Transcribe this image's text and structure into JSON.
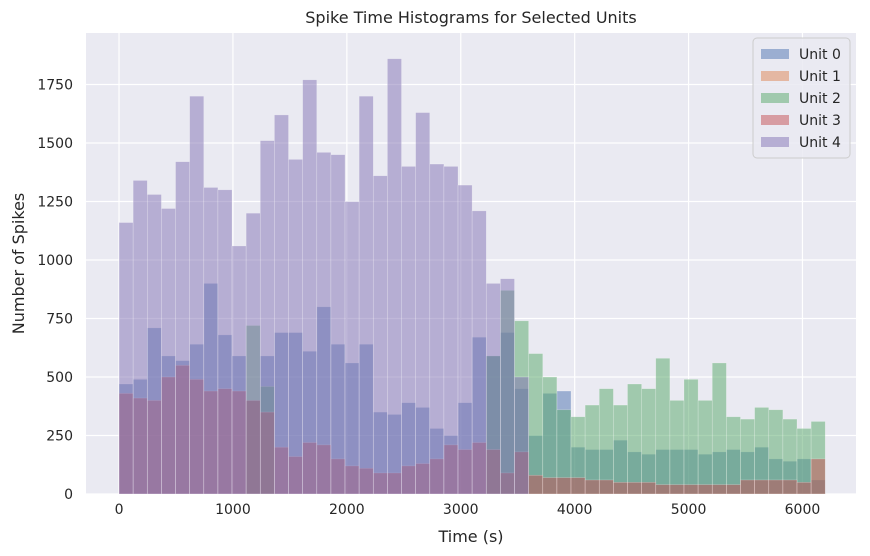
{
  "chart_data": {
    "type": "bar",
    "title": "Spike Time Histograms for Selected Units",
    "xlabel": "Time (s)",
    "ylabel": "Number of Spikes",
    "xlim": [
      -290,
      6470
    ],
    "ylim": [
      0,
      1970
    ],
    "x_ticks": [
      0,
      1000,
      2000,
      3000,
      4000,
      5000,
      6000
    ],
    "y_ticks": [
      0,
      250,
      500,
      750,
      1000,
      1250,
      1500,
      1750
    ],
    "grid": true,
    "legend_position": "top-right",
    "bin_start": 0,
    "bin_width": 124,
    "series": [
      {
        "name": "Unit 0",
        "color": "#4c72b0",
        "values": [
          470,
          490,
          710,
          590,
          570,
          640,
          900,
          680,
          590,
          400,
          590,
          690,
          690,
          610,
          800,
          640,
          560,
          640,
          350,
          340,
          390,
          370,
          280,
          250,
          390,
          670,
          590,
          690,
          450,
          250,
          430,
          440,
          200,
          190,
          190,
          230,
          180,
          170,
          190,
          190,
          190,
          170,
          180,
          190,
          180,
          200,
          150,
          140,
          150,
          60
        ]
      },
      {
        "name": "Unit 1",
        "color": "#dd8452",
        "values": [
          0,
          0,
          0,
          0,
          0,
          0,
          0,
          0,
          0,
          0,
          0,
          0,
          0,
          0,
          0,
          0,
          0,
          0,
          0,
          0,
          0,
          0,
          0,
          0,
          0,
          0,
          0,
          0,
          0,
          0,
          0,
          0,
          0,
          0,
          0,
          0,
          0,
          0,
          0,
          0,
          0,
          0,
          0,
          0,
          0,
          0,
          0,
          0,
          0,
          0
        ]
      },
      {
        "name": "Unit 2",
        "color": "#55a868",
        "values": [
          0,
          0,
          0,
          0,
          0,
          0,
          0,
          0,
          0,
          720,
          460,
          0,
          0,
          0,
          0,
          0,
          0,
          0,
          0,
          0,
          0,
          0,
          0,
          0,
          0,
          0,
          590,
          870,
          740,
          600,
          500,
          360,
          330,
          380,
          450,
          380,
          470,
          450,
          580,
          400,
          490,
          400,
          560,
          330,
          320,
          370,
          360,
          320,
          280,
          310
        ]
      },
      {
        "name": "Unit 3",
        "color": "#c44e52",
        "values": [
          430,
          410,
          400,
          500,
          550,
          490,
          440,
          450,
          440,
          400,
          350,
          200,
          160,
          220,
          210,
          150,
          120,
          110,
          90,
          90,
          120,
          130,
          150,
          210,
          190,
          220,
          190,
          90,
          180,
          80,
          70,
          70,
          70,
          60,
          60,
          50,
          50,
          50,
          40,
          40,
          40,
          40,
          40,
          40,
          60,
          60,
          60,
          60,
          50,
          150
        ]
      },
      {
        "name": "Unit 4",
        "color": "#8172b3",
        "values": [
          1160,
          1340,
          1280,
          1220,
          1420,
          1700,
          1310,
          1300,
          1060,
          1200,
          1510,
          1620,
          1430,
          1770,
          1460,
          1450,
          1250,
          1700,
          1360,
          1860,
          1400,
          1630,
          1410,
          1400,
          1320,
          1210,
          900,
          920,
          500,
          0,
          0,
          0,
          0,
          0,
          0,
          0,
          0,
          0,
          0,
          0,
          0,
          0,
          0,
          0,
          0,
          0,
          0,
          0,
          0,
          0
        ]
      }
    ]
  }
}
